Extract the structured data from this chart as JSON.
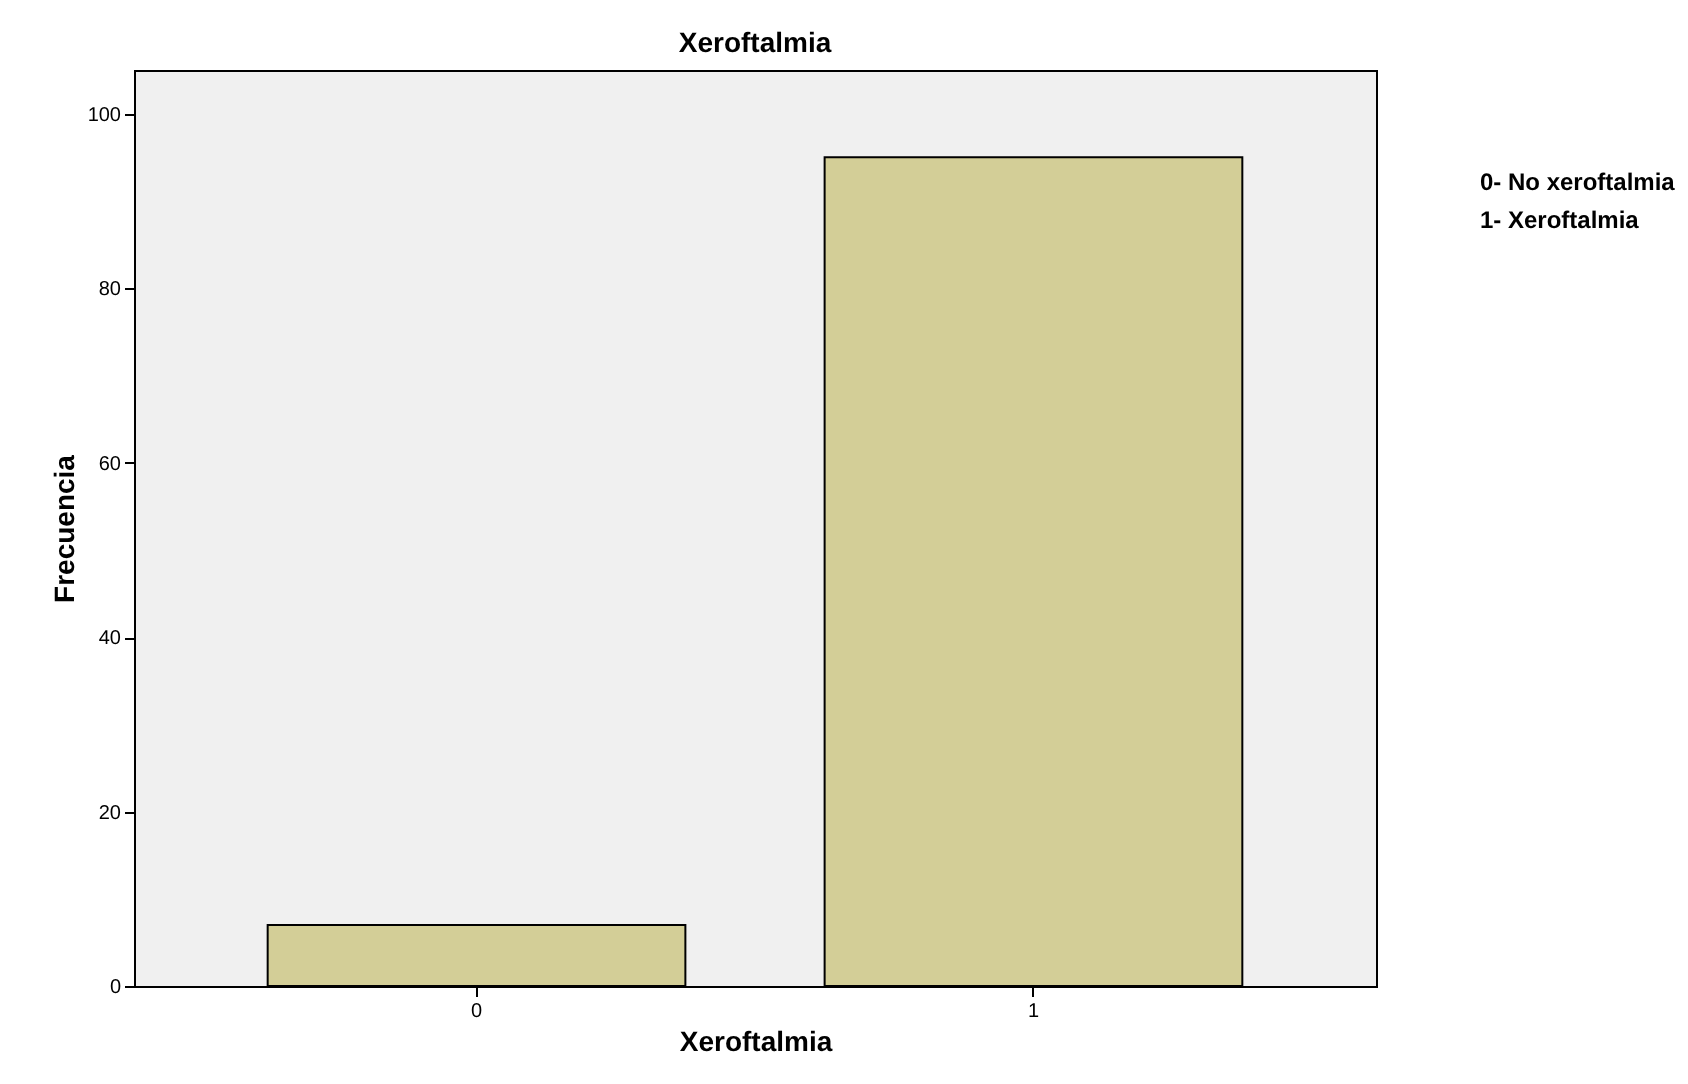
{
  "chart_data": {
    "type": "bar",
    "title": "Xeroftalmia",
    "xlabel": "Xeroftalmia",
    "ylabel": "Frecuencia",
    "categories": [
      "0",
      "1"
    ],
    "values": [
      7,
      95
    ],
    "color": "#d3ce97",
    "ylim": [
      0,
      105
    ],
    "yticks": [
      0,
      20,
      40,
      60,
      80,
      100
    ],
    "grid": false,
    "annotations": [
      "0- No xeroftalmia",
      "1- Xeroftalmia"
    ]
  }
}
